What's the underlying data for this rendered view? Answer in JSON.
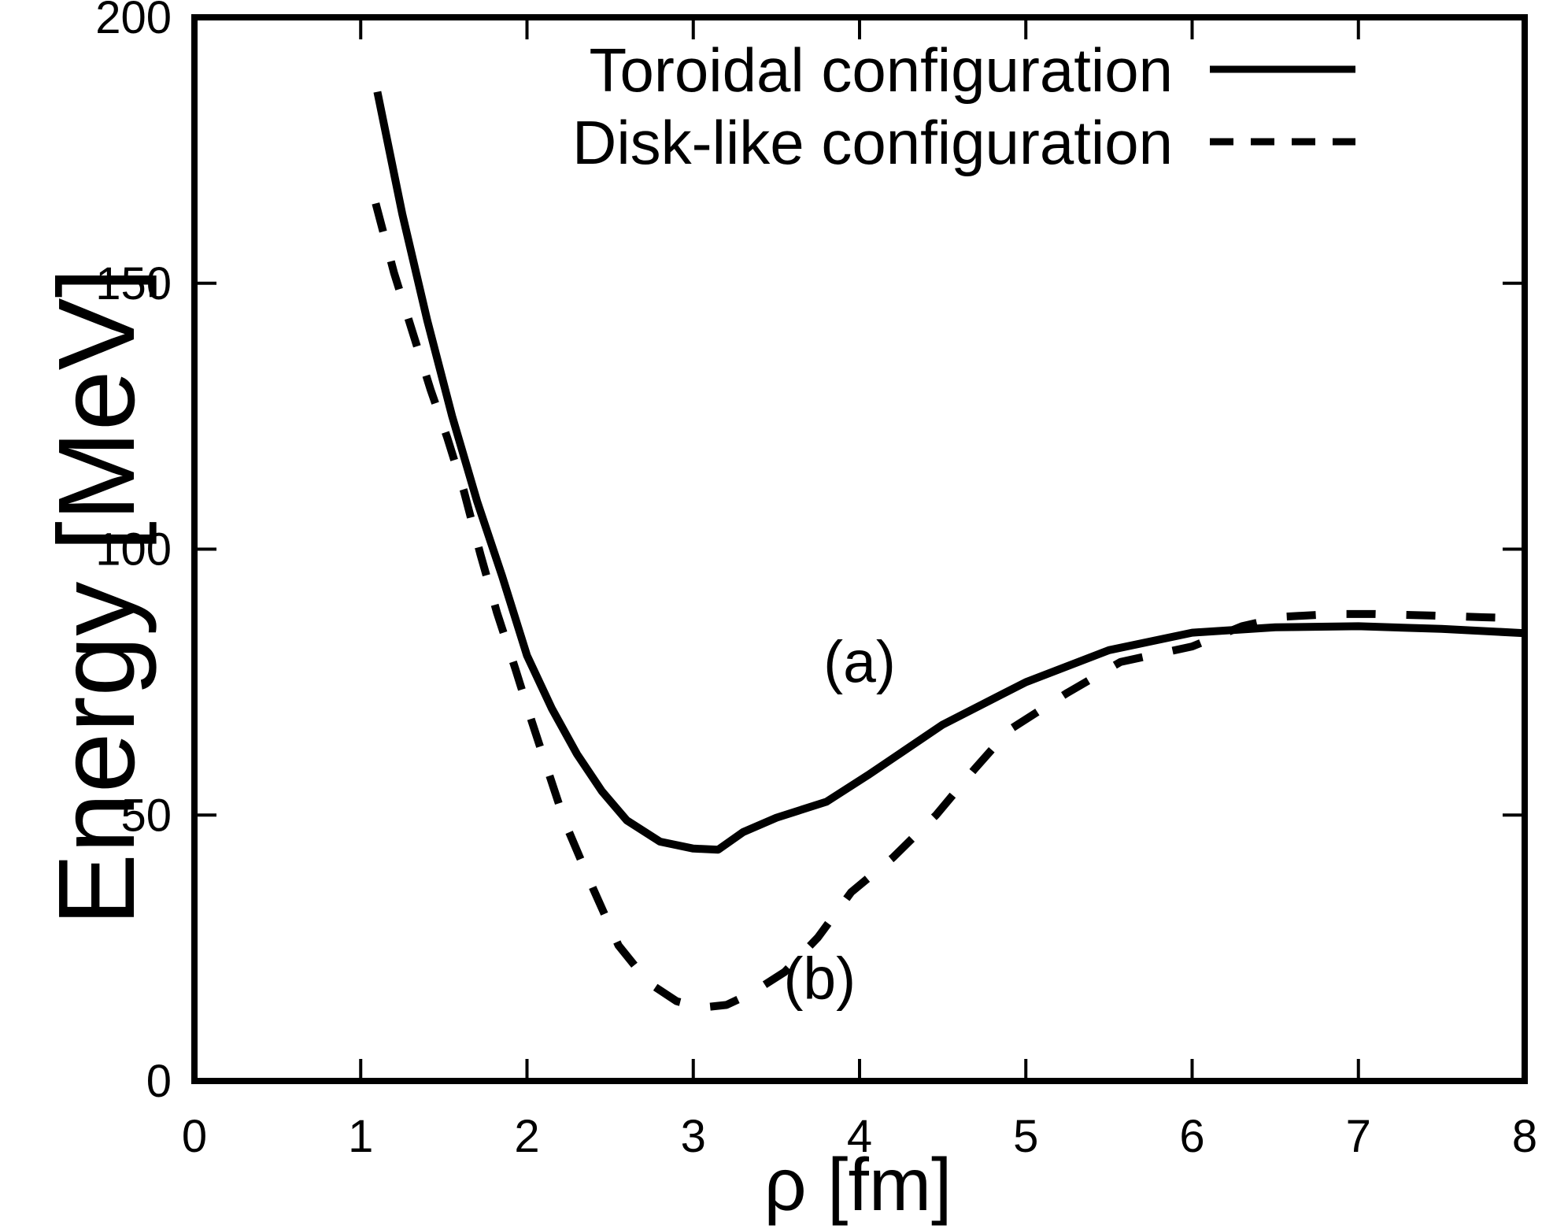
{
  "chart_data": {
    "type": "line",
    "title": "",
    "xlabel": "ρ [fm]",
    "ylabel": "Energy [MeV]",
    "xlim": [
      0,
      8
    ],
    "ylim": [
      0,
      200
    ],
    "xticks": [
      0,
      1,
      2,
      3,
      4,
      5,
      6,
      7,
      8
    ],
    "yticks": [
      0,
      50,
      100,
      150,
      200
    ],
    "grid": false,
    "background_color": "#ffffff",
    "axis_color": "#000000",
    "legend_position": "top-right",
    "series": [
      {
        "name": "Toroidal configuration",
        "line_style": "solid",
        "color": "#000000",
        "x": [
          1.1,
          1.25,
          1.4,
          1.55,
          1.7,
          1.85,
          2.0,
          2.15,
          2.3,
          2.45,
          2.6,
          2.8,
          3.0,
          3.15,
          3.3,
          3.5,
          3.8,
          4.05,
          4.5,
          5.0,
          5.5,
          6.0,
          6.5,
          7.0,
          7.5,
          8.0
        ],
        "y": [
          186,
          163,
          143,
          125,
          109,
          95,
          80,
          70,
          61.5,
          54.5,
          49,
          45,
          43.7,
          43.5,
          46.8,
          49.5,
          52.5,
          57.5,
          67,
          75,
          81,
          84.3,
          85.3,
          85.5,
          85,
          84.2
        ]
      },
      {
        "name": "Disk-like configuration",
        "line_style": "dashed",
        "color": "#000000",
        "x": [
          1.09,
          1.2,
          1.31,
          1.42,
          1.52,
          1.62,
          1.72,
          1.82,
          1.93,
          2.03,
          2.14,
          2.23,
          2.4,
          2.55,
          2.73,
          2.9,
          3.05,
          3.2,
          3.35,
          3.55,
          3.75,
          3.95,
          4.2,
          4.46,
          4.69,
          4.9,
          5.25,
          5.57,
          6.0,
          6.3,
          6.55,
          6.85,
          7.1,
          7.45,
          7.75,
          8.0
        ],
        "y": [
          165,
          152,
          141,
          130,
          121,
          111,
          99,
          88,
          77.5,
          67.5,
          57,
          48.5,
          36,
          25.5,
          18.5,
          15,
          13.8,
          14.3,
          16.5,
          20.5,
          27,
          35.5,
          42,
          50,
          58.6,
          66,
          73,
          78.8,
          81.7,
          85.5,
          87.3,
          87.8,
          87.8,
          87.5,
          87.2,
          87
        ]
      }
    ],
    "legend": {
      "entries": [
        {
          "label": "Toroidal configuration",
          "style": "solid"
        },
        {
          "label": "Disk-like configuration",
          "style": "dashed"
        }
      ]
    },
    "annotations": [
      {
        "text": "(a)",
        "x": 4.0,
        "y": 79
      },
      {
        "text": "(b)",
        "x": 3.76,
        "y": 19.5
      }
    ]
  }
}
